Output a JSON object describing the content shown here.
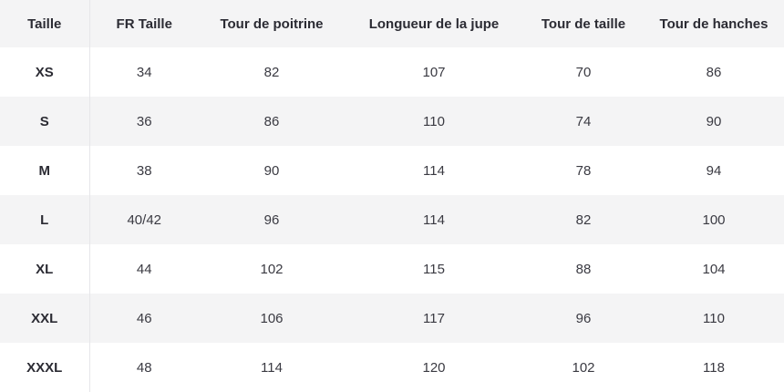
{
  "table": {
    "headers": [
      "Taille",
      "FR Taille",
      "Tour de poitrine",
      "Longueur de la jupe",
      "Tour de taille",
      "Tour de hanches"
    ],
    "rows": [
      [
        "XS",
        "34",
        "82",
        "107",
        "70",
        "86"
      ],
      [
        "S",
        "36",
        "86",
        "110",
        "74",
        "90"
      ],
      [
        "M",
        "38",
        "90",
        "114",
        "78",
        "94"
      ],
      [
        "L",
        "40/42",
        "96",
        "114",
        "82",
        "100"
      ],
      [
        "XL",
        "44",
        "102",
        "115",
        "88",
        "104"
      ],
      [
        "XXL",
        "46",
        "106",
        "117",
        "96",
        "110"
      ],
      [
        "XXXL",
        "48",
        "114",
        "120",
        "102",
        "118"
      ]
    ]
  }
}
